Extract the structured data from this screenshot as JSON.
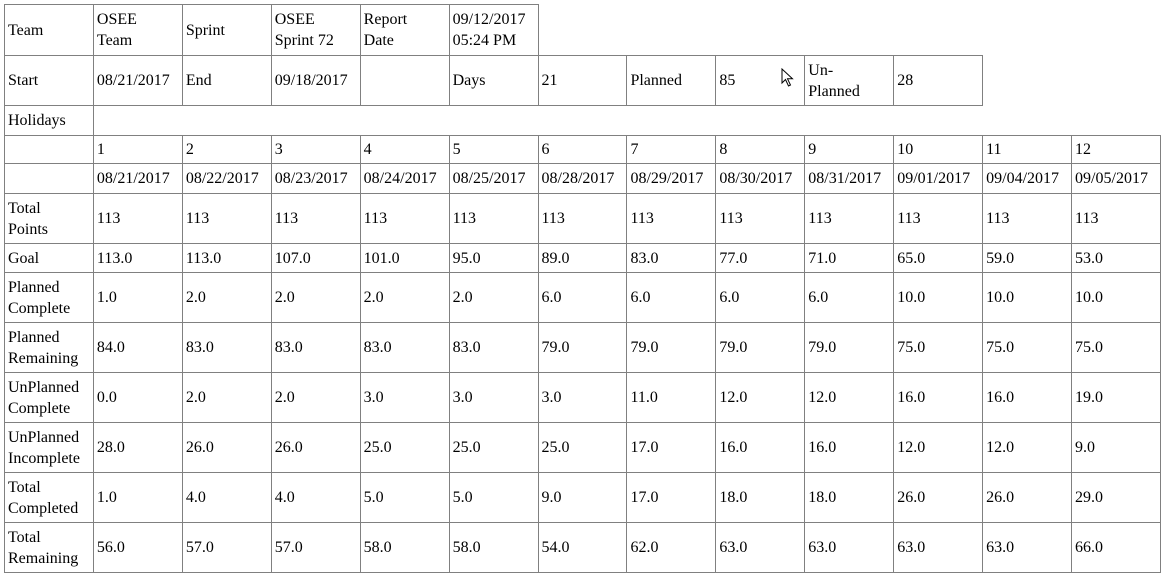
{
  "header1": {
    "team_label": "Team",
    "team_value": "OSEE\nTeam",
    "sprint_label": "Sprint",
    "sprint_value": "OSEE\nSprint 72",
    "report_date_label": "Report\nDate",
    "report_date_value": "09/12/2017\n05:24 PM"
  },
  "header2": {
    "start_label": "Start",
    "start_value": "08/21/2017",
    "end_label": "End",
    "end_value": "09/18/2017",
    "days_label": "Days",
    "days_value": "21",
    "planned_label": "Planned",
    "planned_value": "85",
    "unplanned_label": "Un-\nPlanned",
    "unplanned_value": "28"
  },
  "holidays_label": "Holidays",
  "day_numbers": [
    "1",
    "2",
    "3",
    "4",
    "5",
    "6",
    "7",
    "8",
    "9",
    "10",
    "11",
    "12"
  ],
  "dates": [
    "08/21/2017",
    "08/22/2017",
    "08/23/2017",
    "08/24/2017",
    "08/25/2017",
    "08/28/2017",
    "08/29/2017",
    "08/30/2017",
    "08/31/2017",
    "09/01/2017",
    "09/04/2017",
    "09/05/2017"
  ],
  "metrics": [
    {
      "label": "Total\nPoints",
      "values": [
        "113",
        "113",
        "113",
        "113",
        "113",
        "113",
        "113",
        "113",
        "113",
        "113",
        "113",
        "113"
      ]
    },
    {
      "label": "Goal",
      "values": [
        "113.0",
        "113.0",
        "107.0",
        "101.0",
        "95.0",
        "89.0",
        "83.0",
        "77.0",
        "71.0",
        "65.0",
        "59.0",
        "53.0"
      ]
    },
    {
      "label": "Planned\nComplete",
      "values": [
        "1.0",
        "2.0",
        "2.0",
        "2.0",
        "2.0",
        "6.0",
        "6.0",
        "6.0",
        "6.0",
        "10.0",
        "10.0",
        "10.0"
      ]
    },
    {
      "label": "Planned\nRemaining",
      "values": [
        "84.0",
        "83.0",
        "83.0",
        "83.0",
        "83.0",
        "79.0",
        "79.0",
        "79.0",
        "79.0",
        "75.0",
        "75.0",
        "75.0"
      ]
    },
    {
      "label": "UnPlanned\nComplete",
      "values": [
        "0.0",
        "2.0",
        "2.0",
        "3.0",
        "3.0",
        "3.0",
        "11.0",
        "12.0",
        "12.0",
        "16.0",
        "16.0",
        "19.0"
      ]
    },
    {
      "label": "UnPlanned\nIncomplete",
      "values": [
        "28.0",
        "26.0",
        "26.0",
        "25.0",
        "25.0",
        "25.0",
        "17.0",
        "16.0",
        "16.0",
        "12.0",
        "12.0",
        "9.0"
      ]
    },
    {
      "label": "Total\nCompleted",
      "values": [
        "1.0",
        "4.0",
        "4.0",
        "5.0",
        "5.0",
        "9.0",
        "17.0",
        "18.0",
        "18.0",
        "26.0",
        "26.0",
        "29.0"
      ]
    },
    {
      "label": "Total\nRemaining",
      "values": [
        "56.0",
        "57.0",
        "57.0",
        "58.0",
        "58.0",
        "54.0",
        "62.0",
        "63.0",
        "63.0",
        "63.0",
        "63.0",
        "66.0"
      ]
    }
  ]
}
